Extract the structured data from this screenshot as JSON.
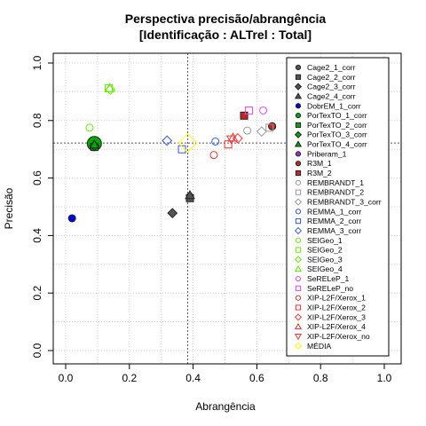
{
  "chart_data": {
    "type": "scatter",
    "title_line1": "Perspectiva precisão/abrangência",
    "title_line2": "[Identificação : ALTrel : Total]",
    "xlabel": "Abrangência",
    "ylabel": "Precisão",
    "xlim": [
      0,
      1
    ],
    "ylim": [
      0,
      1
    ],
    "x_ticks": [
      "0.0",
      "0.2",
      "0.4",
      "0.6",
      "0.8",
      "1.0"
    ],
    "y_ticks": [
      "0.0",
      "0.2",
      "0.4",
      "0.6",
      "0.8",
      "1.0"
    ],
    "grid": true,
    "legend_position": "right",
    "reference_lines": {
      "x": 0.383,
      "y": 0.722
    },
    "series": [
      {
        "name": "Cage2_1_corr",
        "color": "#555555",
        "marker": "circle",
        "fill": true,
        "x": 0.39,
        "y": 0.535
      },
      {
        "name": "Cage2_2_corr",
        "color": "#555555",
        "marker": "square",
        "fill": true,
        "x": 0.39,
        "y": 0.53
      },
      {
        "name": "Cage2_3_corr",
        "color": "#555555",
        "marker": "diamond",
        "fill": true,
        "x": 0.335,
        "y": 0.478
      },
      {
        "name": "Cage2_4_corr",
        "color": "#555555",
        "marker": "triangle",
        "fill": true,
        "x": 0.39,
        "y": 0.54
      },
      {
        "name": "DobrEM_1_corr",
        "color": "#0000ee",
        "marker": "circle",
        "fill": true,
        "x": 0.02,
        "y": 0.46
      },
      {
        "name": "PorTexTO_1_corr",
        "color": "#00aa00",
        "marker": "circle",
        "fill": true,
        "x": 0.09,
        "y": 0.72,
        "big": true
      },
      {
        "name": "PorTexTO_2_corr",
        "color": "#00aa00",
        "marker": "square",
        "fill": true,
        "x": 0.09,
        "y": 0.708
      },
      {
        "name": "PorTexTO_3_corr",
        "color": "#00aa00",
        "marker": "diamond",
        "fill": true,
        "x": 0.09,
        "y": 0.712
      },
      {
        "name": "PorTexTO_4_corr",
        "color": "#00aa00",
        "marker": "triangle",
        "fill": true,
        "x": 0.09,
        "y": 0.716
      },
      {
        "name": "Priberam_1",
        "color": "#9932cc",
        "marker": "circle",
        "fill": true,
        "x": 0.648,
        "y": 0.78
      },
      {
        "name": "R3M_1",
        "color": "#cc2222",
        "marker": "circle",
        "fill": true,
        "x": 0.648,
        "y": 0.78
      },
      {
        "name": "R3M_2",
        "color": "#cc2222",
        "marker": "square",
        "fill": true,
        "x": 0.56,
        "y": 0.817
      },
      {
        "name": "REMBRANDT_1",
        "color": "#999999",
        "marker": "circle",
        "fill": false,
        "x": 0.57,
        "y": 0.765
      },
      {
        "name": "REMBRANDT_2",
        "color": "#999999",
        "marker": "square",
        "fill": false,
        "x": 0.64,
        "y": 0.775
      },
      {
        "name": "REMBRANDT_3_corr",
        "color": "#999999",
        "marker": "diamond",
        "fill": false,
        "x": 0.615,
        "y": 0.762
      },
      {
        "name": "REMMA_1_corr",
        "color": "#3355ee",
        "marker": "circle",
        "fill": false,
        "x": 0.47,
        "y": 0.727
      },
      {
        "name": "REMMA_2_corr",
        "color": "#3355ee",
        "marker": "square",
        "fill": false,
        "x": 0.365,
        "y": 0.7
      },
      {
        "name": "REMMA_3_corr",
        "color": "#3355ee",
        "marker": "diamond",
        "fill": false,
        "x": 0.318,
        "y": 0.73
      },
      {
        "name": "SEIGeo_1",
        "color": "#66ee00",
        "marker": "circle",
        "fill": false,
        "x": 0.075,
        "y": 0.775
      },
      {
        "name": "SEIGeo_2",
        "color": "#66ee00",
        "marker": "square",
        "fill": false,
        "x": 0.135,
        "y": 0.912
      },
      {
        "name": "SEIGeo_3",
        "color": "#66ee00",
        "marker": "diamond",
        "fill": false,
        "x": 0.14,
        "y": 0.907
      },
      {
        "name": "SEIGeo_4",
        "color": "#66ee00",
        "marker": "triangle",
        "fill": false,
        "x": 0.138,
        "y": 0.912
      },
      {
        "name": "SeRELeP_1",
        "color": "#ee44ee",
        "marker": "circle",
        "fill": false,
        "x": 0.62,
        "y": 0.835
      },
      {
        "name": "SeRELeP_no",
        "color": "#ee44ee",
        "marker": "square",
        "fill": false,
        "x": 0.575,
        "y": 0.835
      },
      {
        "name": "XIP-L2F/Xerox_1",
        "color": "#ee3333",
        "marker": "circle",
        "fill": false,
        "x": 0.465,
        "y": 0.68
      },
      {
        "name": "XIP-L2F/Xerox_2",
        "color": "#ee3333",
        "marker": "square",
        "fill": false,
        "x": 0.51,
        "y": 0.717
      },
      {
        "name": "XIP-L2F/Xerox_3",
        "color": "#ee3333",
        "marker": "diamond",
        "fill": false,
        "x": 0.54,
        "y": 0.738
      },
      {
        "name": "XIP-L2F/Xerox_4",
        "color": "#ee3333",
        "marker": "triangle",
        "fill": false,
        "x": 0.525,
        "y": 0.74
      },
      {
        "name": "XIP-L2F/Xerox_no",
        "color": "#ee3333",
        "marker": "triangle-down",
        "fill": false,
        "x": 0.52,
        "y": 0.735
      },
      {
        "name": "MÉDIA",
        "color": "#ffff00",
        "marker": "diamond",
        "fill": false,
        "x": 0.383,
        "y": 0.722,
        "big": true
      }
    ]
  }
}
